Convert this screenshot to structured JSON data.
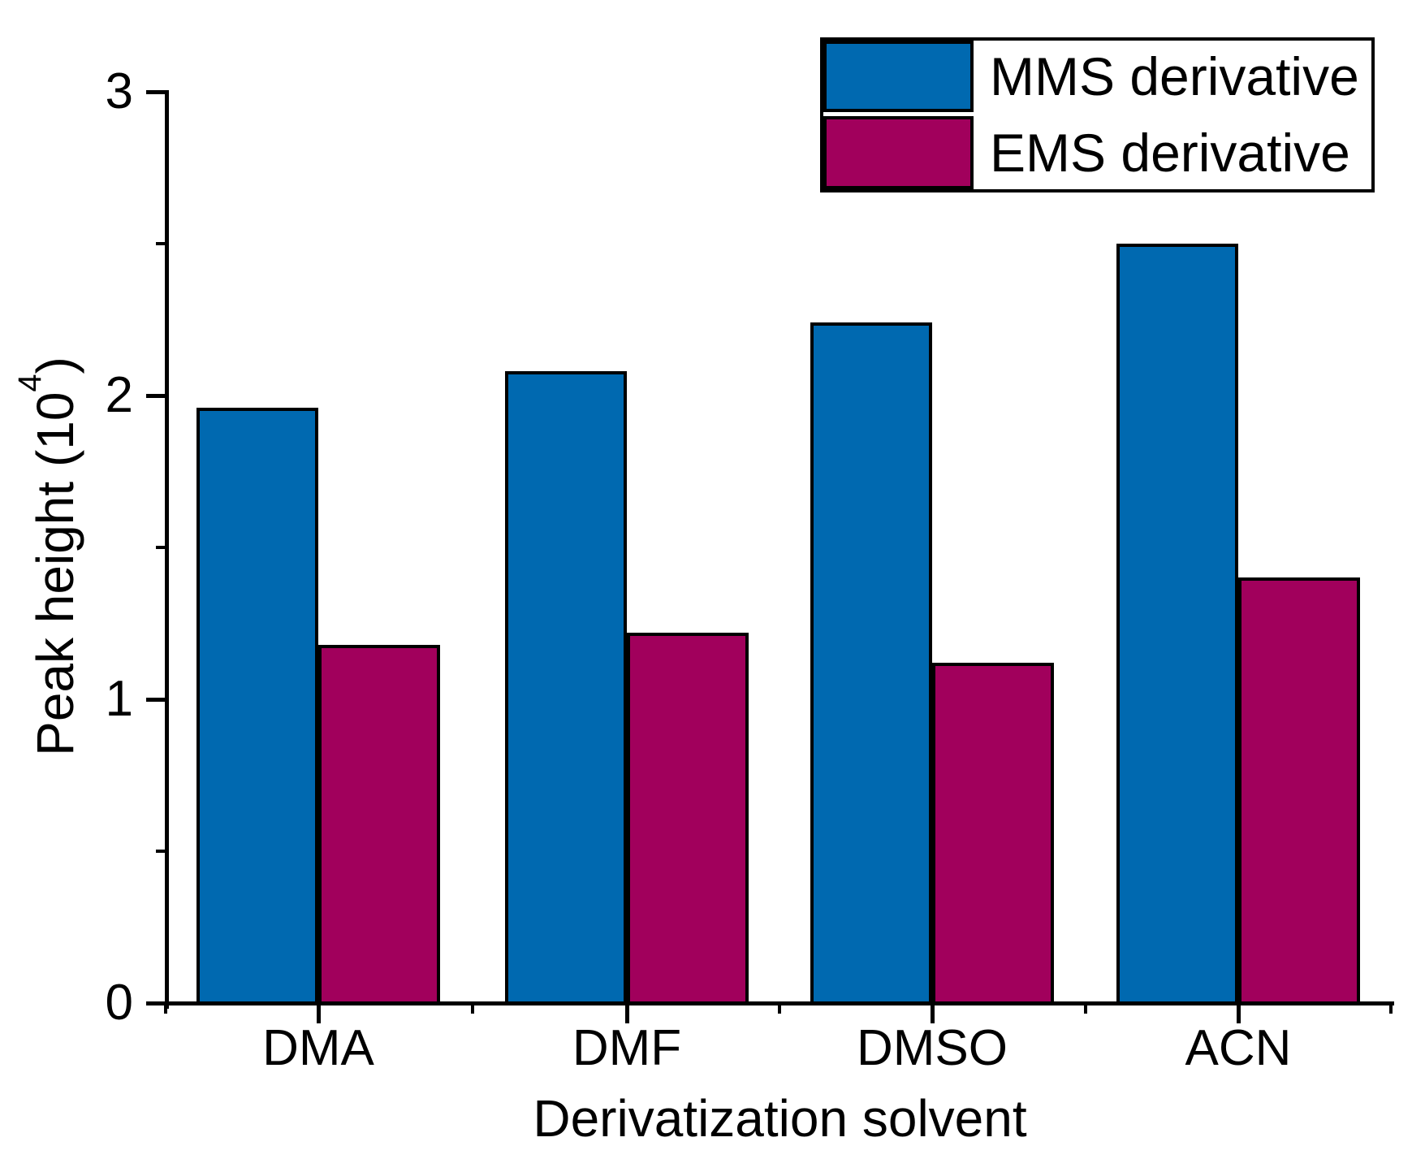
{
  "chart_data": {
    "type": "bar",
    "categories": [
      "DMA",
      "DMF",
      "DMSO",
      "ACN"
    ],
    "series": [
      {
        "name": "MMS derivative",
        "color": "#0069b0",
        "values": [
          1.96,
          2.08,
          2.24,
          2.5
        ]
      },
      {
        "name": "EMS derivative",
        "color": "#a1005c",
        "values": [
          1.18,
          1.22,
          1.12,
          1.4
        ]
      }
    ],
    "title": "",
    "xlabel": "Derivatization solvent",
    "ylabel": "Peak height (10⁴)",
    "ylabel_parts": {
      "prefix": "Peak height (10",
      "exponent": "4",
      "suffix": ")"
    },
    "ylim": [
      0,
      3
    ],
    "yticks_major": [
      0,
      1,
      2,
      3
    ],
    "yticks_minor": [
      0.5,
      1.5,
      2.5
    ],
    "xticks_minor_between_groups": true,
    "grid": false,
    "legend_position": "top-right",
    "axis_color": "#000000",
    "bar_outline_color": "#000000",
    "background_color": "#ffffff"
  }
}
